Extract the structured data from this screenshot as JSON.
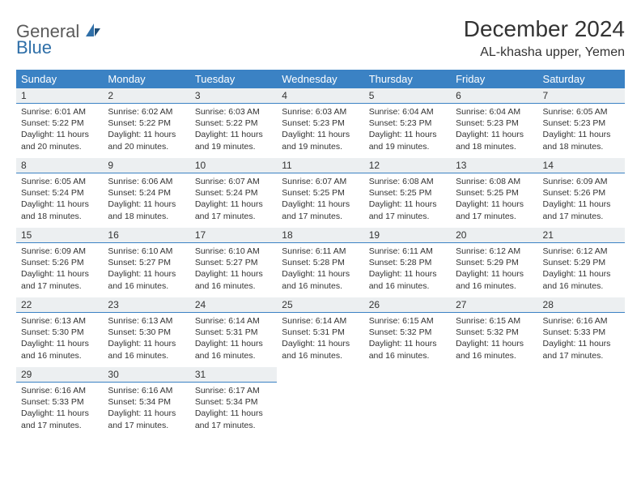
{
  "brand": {
    "general": "General",
    "blue": "Blue"
  },
  "header": {
    "title": "December 2024",
    "location": "AL-khasha upper, Yemen"
  },
  "colors": {
    "header_bg": "#3b82c4",
    "header_text": "#ffffff",
    "daybar_bg": "#eceff1",
    "daybar_border": "#3b82c4",
    "text": "#333333",
    "logo_gray": "#5a5a5a",
    "logo_blue": "#2f6fa8"
  },
  "calendar": {
    "weekdays": [
      "Sunday",
      "Monday",
      "Tuesday",
      "Wednesday",
      "Thursday",
      "Friday",
      "Saturday"
    ],
    "weeks": [
      [
        {
          "n": "1",
          "rise": "6:01 AM",
          "set": "5:22 PM",
          "dh": "11",
          "dm": "20"
        },
        {
          "n": "2",
          "rise": "6:02 AM",
          "set": "5:22 PM",
          "dh": "11",
          "dm": "20"
        },
        {
          "n": "3",
          "rise": "6:03 AM",
          "set": "5:22 PM",
          "dh": "11",
          "dm": "19"
        },
        {
          "n": "4",
          "rise": "6:03 AM",
          "set": "5:23 PM",
          "dh": "11",
          "dm": "19"
        },
        {
          "n": "5",
          "rise": "6:04 AM",
          "set": "5:23 PM",
          "dh": "11",
          "dm": "19"
        },
        {
          "n": "6",
          "rise": "6:04 AM",
          "set": "5:23 PM",
          "dh": "11",
          "dm": "18"
        },
        {
          "n": "7",
          "rise": "6:05 AM",
          "set": "5:23 PM",
          "dh": "11",
          "dm": "18"
        }
      ],
      [
        {
          "n": "8",
          "rise": "6:05 AM",
          "set": "5:24 PM",
          "dh": "11",
          "dm": "18"
        },
        {
          "n": "9",
          "rise": "6:06 AM",
          "set": "5:24 PM",
          "dh": "11",
          "dm": "18"
        },
        {
          "n": "10",
          "rise": "6:07 AM",
          "set": "5:24 PM",
          "dh": "11",
          "dm": "17"
        },
        {
          "n": "11",
          "rise": "6:07 AM",
          "set": "5:25 PM",
          "dh": "11",
          "dm": "17"
        },
        {
          "n": "12",
          "rise": "6:08 AM",
          "set": "5:25 PM",
          "dh": "11",
          "dm": "17"
        },
        {
          "n": "13",
          "rise": "6:08 AM",
          "set": "5:25 PM",
          "dh": "11",
          "dm": "17"
        },
        {
          "n": "14",
          "rise": "6:09 AM",
          "set": "5:26 PM",
          "dh": "11",
          "dm": "17"
        }
      ],
      [
        {
          "n": "15",
          "rise": "6:09 AM",
          "set": "5:26 PM",
          "dh": "11",
          "dm": "17"
        },
        {
          "n": "16",
          "rise": "6:10 AM",
          "set": "5:27 PM",
          "dh": "11",
          "dm": "16"
        },
        {
          "n": "17",
          "rise": "6:10 AM",
          "set": "5:27 PM",
          "dh": "11",
          "dm": "16"
        },
        {
          "n": "18",
          "rise": "6:11 AM",
          "set": "5:28 PM",
          "dh": "11",
          "dm": "16"
        },
        {
          "n": "19",
          "rise": "6:11 AM",
          "set": "5:28 PM",
          "dh": "11",
          "dm": "16"
        },
        {
          "n": "20",
          "rise": "6:12 AM",
          "set": "5:29 PM",
          "dh": "11",
          "dm": "16"
        },
        {
          "n": "21",
          "rise": "6:12 AM",
          "set": "5:29 PM",
          "dh": "11",
          "dm": "16"
        }
      ],
      [
        {
          "n": "22",
          "rise": "6:13 AM",
          "set": "5:30 PM",
          "dh": "11",
          "dm": "16"
        },
        {
          "n": "23",
          "rise": "6:13 AM",
          "set": "5:30 PM",
          "dh": "11",
          "dm": "16"
        },
        {
          "n": "24",
          "rise": "6:14 AM",
          "set": "5:31 PM",
          "dh": "11",
          "dm": "16"
        },
        {
          "n": "25",
          "rise": "6:14 AM",
          "set": "5:31 PM",
          "dh": "11",
          "dm": "16"
        },
        {
          "n": "26",
          "rise": "6:15 AM",
          "set": "5:32 PM",
          "dh": "11",
          "dm": "16"
        },
        {
          "n": "27",
          "rise": "6:15 AM",
          "set": "5:32 PM",
          "dh": "11",
          "dm": "16"
        },
        {
          "n": "28",
          "rise": "6:16 AM",
          "set": "5:33 PM",
          "dh": "11",
          "dm": "17"
        }
      ],
      [
        {
          "n": "29",
          "rise": "6:16 AM",
          "set": "5:33 PM",
          "dh": "11",
          "dm": "17"
        },
        {
          "n": "30",
          "rise": "6:16 AM",
          "set": "5:34 PM",
          "dh": "11",
          "dm": "17"
        },
        {
          "n": "31",
          "rise": "6:17 AM",
          "set": "5:34 PM",
          "dh": "11",
          "dm": "17"
        },
        null,
        null,
        null,
        null
      ]
    ],
    "labels": {
      "sunrise": "Sunrise:",
      "sunset": "Sunset:",
      "daylight_prefix": "Daylight:",
      "hours_word": "hours",
      "and_word": "and",
      "minutes_word": "minutes."
    }
  }
}
